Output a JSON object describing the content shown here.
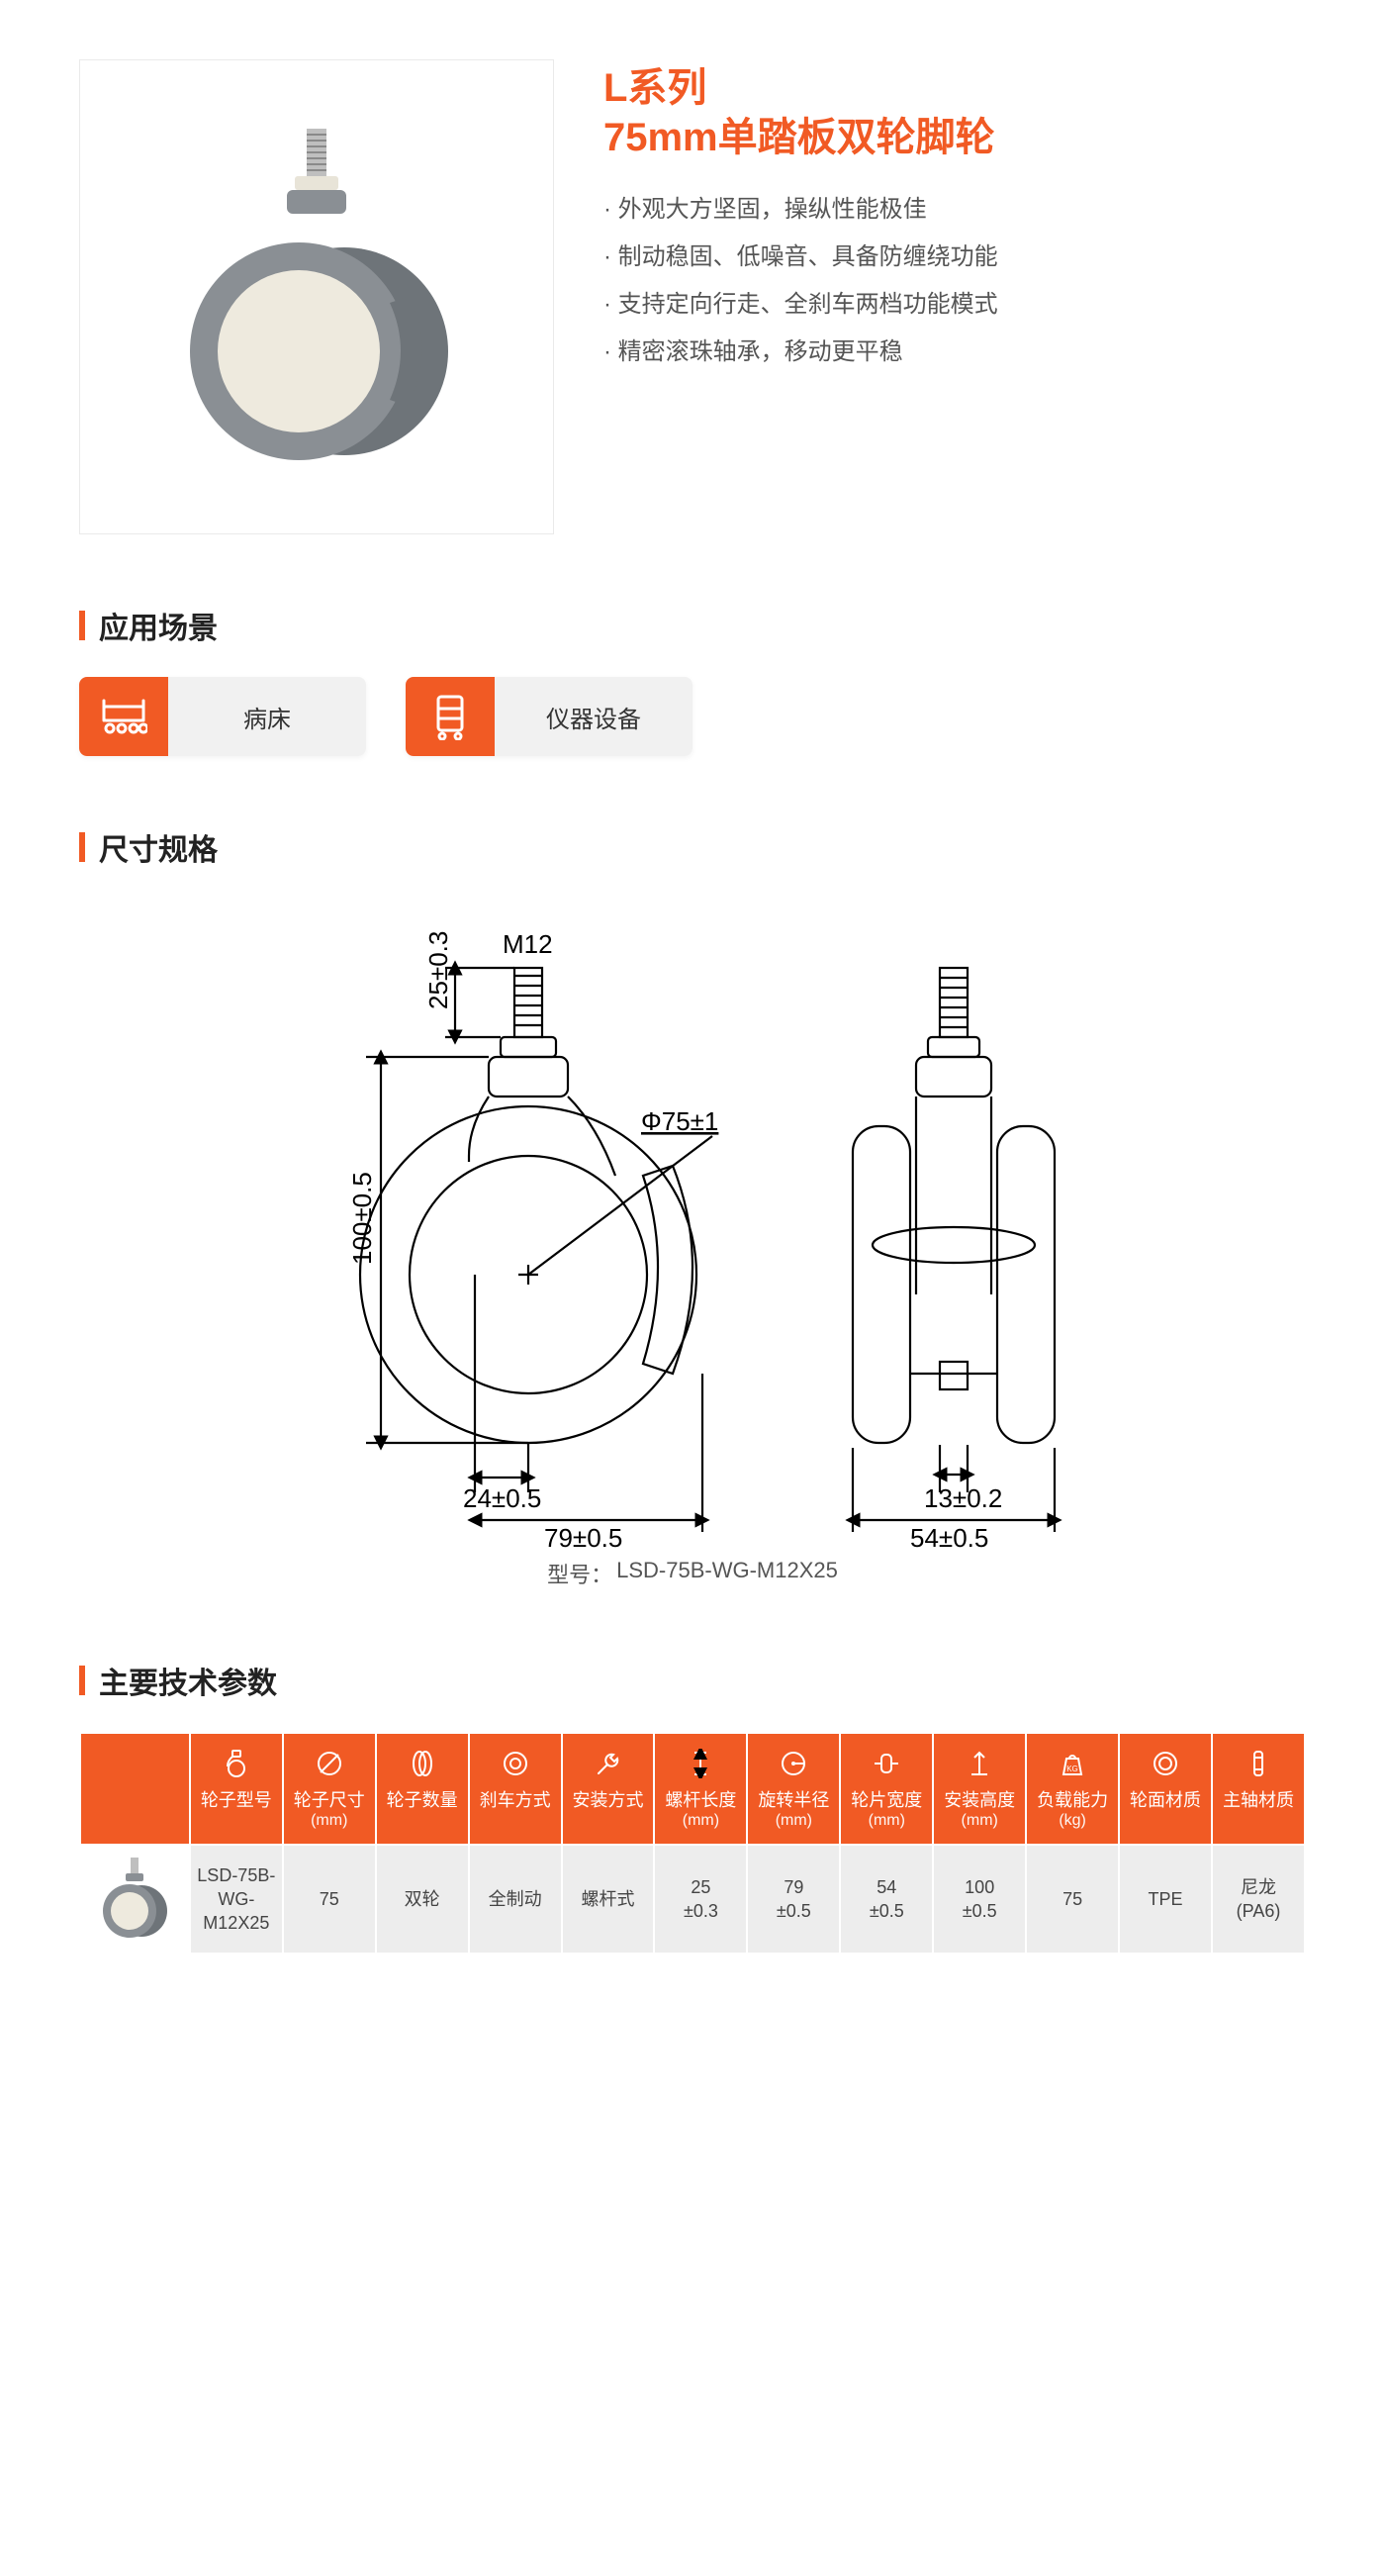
{
  "colors": {
    "accent": "#f15a24",
    "grey_bg": "#f1f1f1",
    "cell_bg": "#ededed",
    "text": "#333333",
    "dimline": "#000000"
  },
  "hero": {
    "title_line1": "L系列",
    "title_line2": "75mm单踏板双轮脚轮",
    "bullets": [
      "外观大方坚固，操纵性能极佳",
      "制动稳固、低噪音、具备防缠绕功能",
      "支持定向行走、全刹车两档功能模式",
      "精密滚珠轴承，移动更平稳"
    ]
  },
  "sections": {
    "applications": "应用场景",
    "dimensions": "尺寸规格",
    "specs": "主要技术参数"
  },
  "applications": [
    {
      "icon": "bed-icon",
      "label": "病床"
    },
    {
      "icon": "instrument-icon",
      "label": "仪器设备"
    }
  ],
  "drawing": {
    "model_caption_prefix": "型号：",
    "model": "LSD-75B-WG-M12X25",
    "labels": {
      "thread": "M12",
      "thread_len": "25±0.3",
      "install_h": "100±0.5",
      "wheel_dia": "Φ75±1",
      "offset": "24±0.5",
      "swivel_r": "79±0.5",
      "hub_w": "13±0.2",
      "wheel_w": "54±0.5"
    },
    "style": {
      "stroke": "#000000",
      "stroke_width": 2,
      "font_size": 26,
      "font_family": "Arial, sans-serif"
    }
  },
  "spec_table": {
    "columns": [
      {
        "icon": "caster-icon",
        "label": "轮子型号",
        "sub": ""
      },
      {
        "icon": "dia-icon",
        "label": "轮子尺寸",
        "sub": "(mm)"
      },
      {
        "icon": "count-icon",
        "label": "轮子数量",
        "sub": ""
      },
      {
        "icon": "brake-icon",
        "label": "刹车方式",
        "sub": ""
      },
      {
        "icon": "wrench-icon",
        "label": "安装方式",
        "sub": ""
      },
      {
        "icon": "len-icon",
        "label": "螺杆长度",
        "sub": "(mm)"
      },
      {
        "icon": "radius-icon",
        "label": "旋转半径",
        "sub": "(mm)"
      },
      {
        "icon": "width-icon",
        "label": "轮片宽度",
        "sub": "(mm)"
      },
      {
        "icon": "height-icon",
        "label": "安装高度",
        "sub": "(mm)"
      },
      {
        "icon": "load-icon",
        "label": "负载能力",
        "sub": "(kg)"
      },
      {
        "icon": "tread-icon",
        "label": "轮面材质",
        "sub": ""
      },
      {
        "icon": "axle-icon",
        "label": "主轴材质",
        "sub": ""
      }
    ],
    "rows": [
      {
        "image": "caster-thumb",
        "cells": [
          "LSD-75B-WG-M12X25",
          "75",
          "双轮",
          "全制动",
          "螺杆式",
          "25\n±0.3",
          "79\n±0.5",
          "54\n±0.5",
          "100\n±0.5",
          "75",
          "TPE",
          "尼龙\n(PA6)"
        ]
      }
    ]
  }
}
